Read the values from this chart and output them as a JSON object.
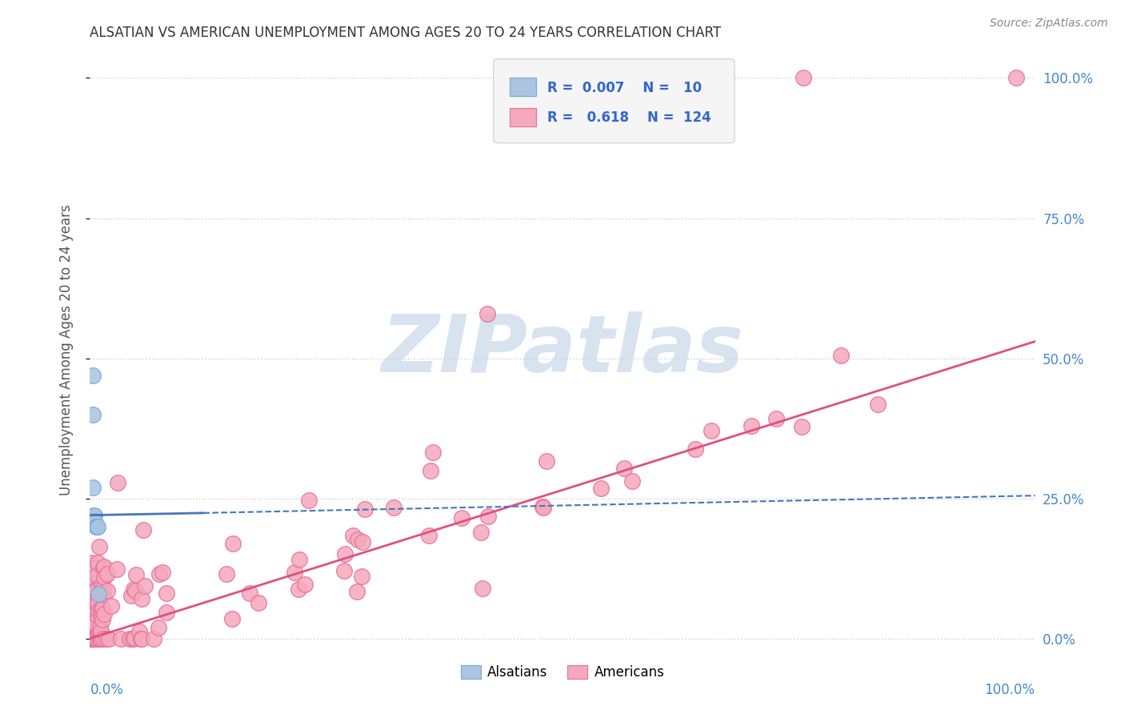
{
  "title": "ALSATIAN VS AMERICAN UNEMPLOYMENT AMONG AGES 20 TO 24 YEARS CORRELATION CHART",
  "source": "Source: ZipAtlas.com",
  "ylabel": "Unemployment Among Ages 20 to 24 years",
  "alsatian_color": "#aac4e2",
  "alsatian_edge": "#7aaad4",
  "american_color": "#f5a8bc",
  "american_edge": "#e8709a",
  "trend_alsatian_color": "#4477bb",
  "trend_american_color": "#e05080",
  "right_tick_color": "#4488cc",
  "bottom_tick_color": "#4488cc",
  "watermark_color": "#c8d8ea",
  "legend_box_color": "#f5f5f5",
  "legend_border_color": "#cccccc",
  "background_color": "#ffffff",
  "grid_color": "#cccccc",
  "yticks": [
    0.0,
    0.25,
    0.5,
    0.75,
    1.0
  ],
  "yticklabels": [
    "0.0%",
    "25.0%",
    "50.0%",
    "75.0%",
    "100.0%"
  ],
  "xlim": [
    0.0,
    1.0
  ],
  "ylim": [
    -0.02,
    1.05
  ],
  "als_trend_x": [
    0.0,
    1.0
  ],
  "als_trend_y": [
    0.22,
    0.255
  ],
  "am_trend_x": [
    0.0,
    1.0
  ],
  "am_trend_y": [
    0.0,
    0.53
  ]
}
